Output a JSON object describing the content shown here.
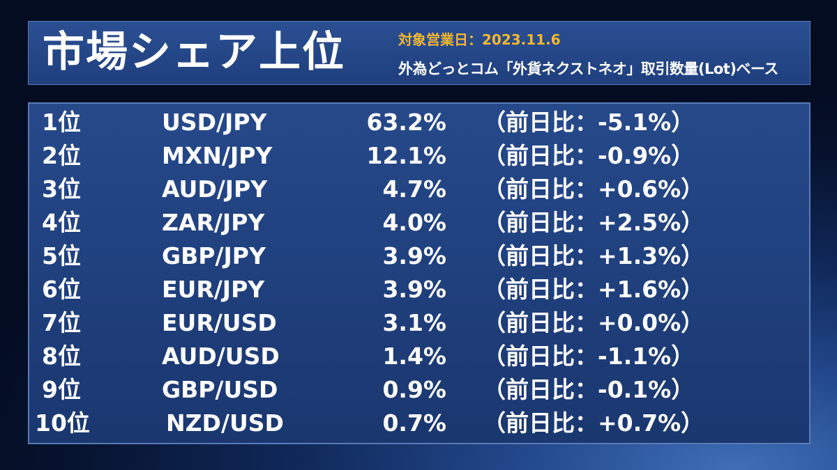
{
  "header": {
    "title": "市場シェア上位",
    "date_label": "対象営業日：2023.11.6",
    "basis_label": "外為どっとコム「外貨ネクストネオ」取引数量(Lot)ベース"
  },
  "rankings": [
    {
      "rank": "1位",
      "pair": "USD/JPY",
      "share": "63.2%",
      "change": "（前日比：-5.1%）"
    },
    {
      "rank": "2位",
      "pair": "MXN/JPY",
      "share": "12.1%",
      "change": "（前日比：-0.9%）"
    },
    {
      "rank": "3位",
      "pair": "AUD/JPY",
      "share": "4.7%",
      "change": "（前日比：+0.6%）"
    },
    {
      "rank": "4位",
      "pair": "ZAR/JPY",
      "share": "4.0%",
      "change": "（前日比：+2.5%）"
    },
    {
      "rank": "5位",
      "pair": "GBP/JPY",
      "share": "3.9%",
      "change": "（前日比：+1.3%）"
    },
    {
      "rank": "6位",
      "pair": "EUR/JPY",
      "share": "3.9%",
      "change": "（前日比：+1.6%）"
    },
    {
      "rank": "7位",
      "pair": "EUR/USD",
      "share": "3.1%",
      "change": "（前日比：+0.0%）"
    },
    {
      "rank": "8位",
      "pair": "AUD/USD",
      "share": "1.4%",
      "change": "（前日比：-1.1%）"
    },
    {
      "rank": "9位",
      "pair": "GBP/USD",
      "share": "0.9%",
      "change": "（前日比：-0.1%）"
    },
    {
      "rank": "10位",
      "pair": "NZD/USD",
      "share": "0.7%",
      "change": "（前日比：+0.7%）"
    }
  ]
}
